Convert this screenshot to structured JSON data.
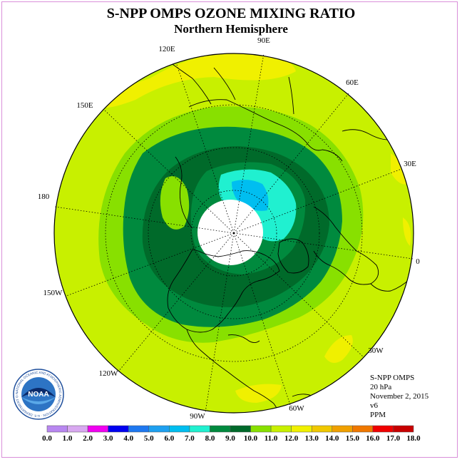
{
  "header": {
    "title": "S-NPP OMPS OZONE MIXING RATIO",
    "subtitle": "Northern Hemisphere"
  },
  "map": {
    "projection": "north polar stereographic",
    "longitude_labels": [
      "90E",
      "60E",
      "30E",
      "0",
      "30W",
      "60W",
      "90W",
      "120W",
      "150W",
      "180",
      "150E",
      "120E"
    ]
  },
  "info": {
    "instrument": "S-NPP OMPS",
    "level": "20 hPa",
    "date": "November 2, 2015",
    "version": "v6",
    "units": "PPM"
  },
  "legend": {
    "ticks": [
      "0.0",
      "1.0",
      "2.0",
      "3.0",
      "4.0",
      "5.0",
      "6.0",
      "7.0",
      "8.0",
      "9.0",
      "10.0",
      "11.0",
      "12.0",
      "13.0",
      "14.0",
      "15.0",
      "16.0",
      "17.0",
      "18.0"
    ],
    "colors": [
      "#b887f0",
      "#d8a8f0",
      "#f000f0",
      "#0000f0",
      "#1e78f0",
      "#1ea0f0",
      "#00bef0",
      "#20f0d0",
      "#008a3e",
      "#006a2a",
      "#88e000",
      "#c8f000",
      "#f0f000",
      "#f0c800",
      "#f0a000",
      "#f07800",
      "#f00000",
      "#c80000",
      "#8a5a3c"
    ]
  },
  "logo": {
    "text": "NOAA",
    "ring_text": "NATIONAL OCEANIC AND ATMOSPHERIC ADMINISTRATION · U.S. DEPARTMENT OF COMMERCE"
  }
}
